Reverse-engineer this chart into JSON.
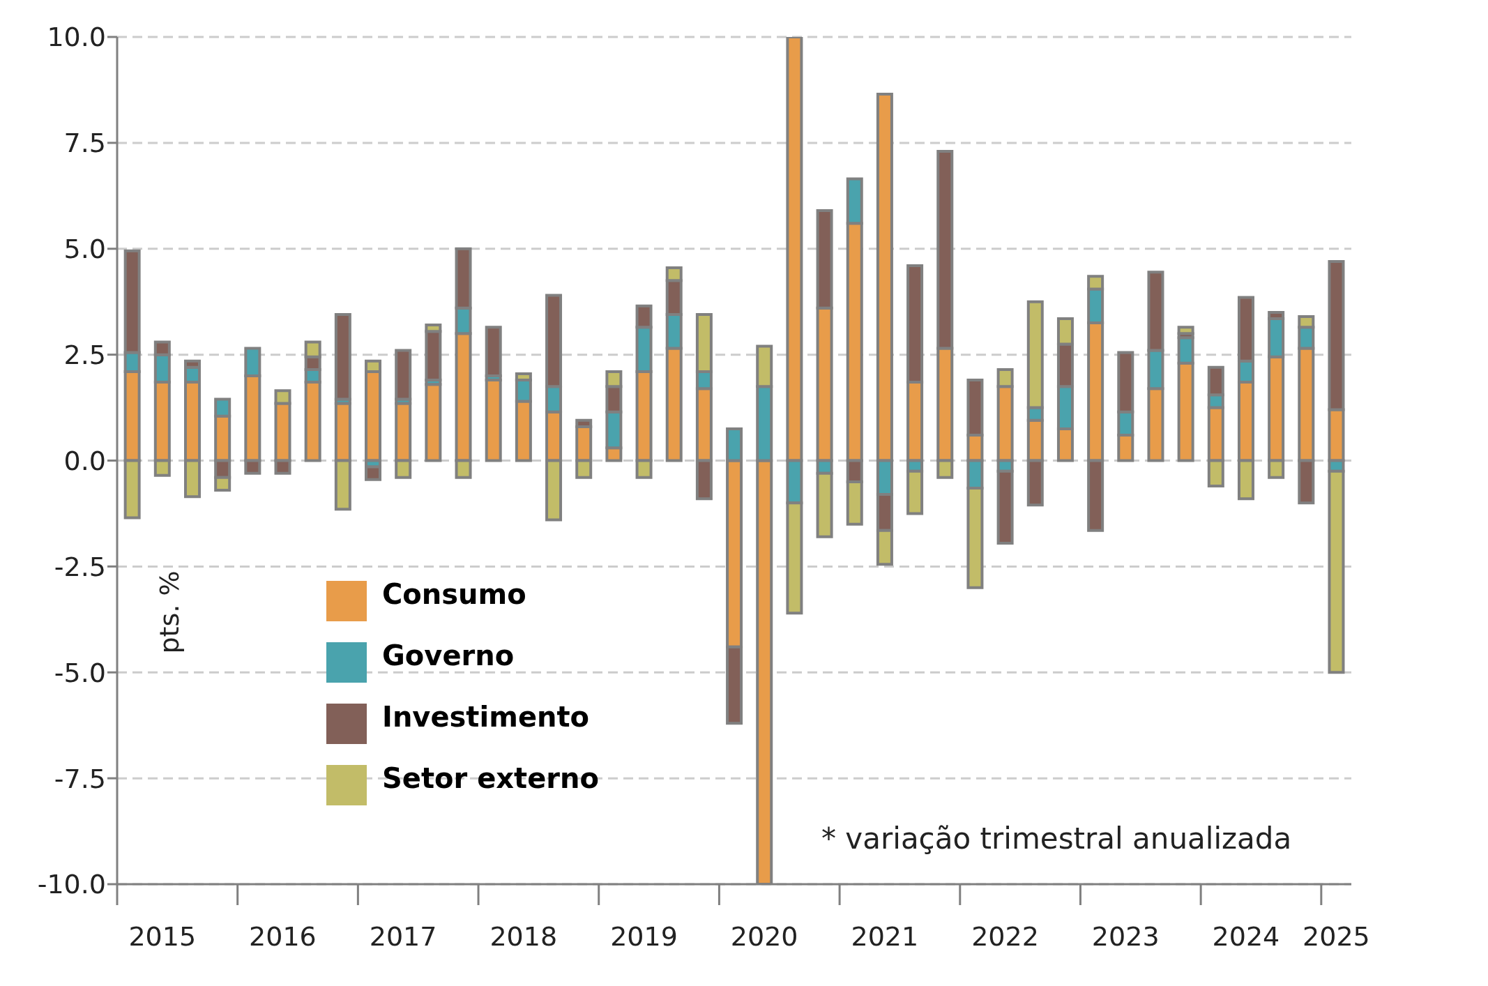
{
  "chart_data": {
    "type": "bar",
    "stacked": true,
    "ylabel": "pts. %",
    "annotations": [
      "* variação trimestral anualizada"
    ],
    "categories": [
      null,
      "2015",
      null,
      null,
      null,
      "2016",
      null,
      null,
      null,
      "2017",
      null,
      null,
      null,
      "2018",
      null,
      null,
      null,
      "2019",
      null,
      null,
      null,
      "2020",
      null,
      null,
      null,
      "2021",
      null,
      null,
      null,
      "2022",
      null,
      null,
      null,
      "2023",
      null,
      null,
      null,
      "2024",
      null,
      null,
      "2025"
    ],
    "series": [
      {
        "name": "Consumo",
        "color": "#e89c4a",
        "values": [
          2.1,
          1.85,
          1.85,
          1.05,
          2.0,
          1.35,
          1.85,
          1.35,
          2.1,
          1.35,
          1.8,
          3.0,
          1.9,
          1.4,
          1.15,
          0.8,
          0.3,
          2.1,
          2.65,
          1.7,
          -4.4,
          -10,
          10,
          3.6,
          5.6,
          8.65,
          1.85,
          2.65,
          0.6,
          1.75,
          0.95,
          0.75,
          3.25,
          0.6,
          1.7,
          2.3,
          1.25,
          1.85,
          2.45,
          2.65,
          1.2
        ]
      },
      {
        "name": "Governo",
        "color": "#4aa3ad",
        "values": [
          0.45,
          0.65,
          0.35,
          0.4,
          0.65,
          null,
          0.3,
          0.1,
          -0.15,
          0.1,
          0.1,
          0.6,
          0.1,
          0.5,
          0.6,
          null,
          0.85,
          1.05,
          0.8,
          0.4,
          0.75,
          1.75,
          -1.0,
          -0.3,
          1.05,
          -0.8,
          -0.25,
          null,
          -0.65,
          -0.25,
          0.3,
          1.0,
          0.8,
          0.55,
          0.9,
          0.6,
          0.3,
          0.5,
          0.9,
          0.5,
          -0.25
        ]
      },
      {
        "name": "Investimento",
        "color": "#826058",
        "values": [
          2.4,
          0.3,
          0.15,
          -0.4,
          -0.3,
          -0.3,
          0.3,
          2.0,
          -0.3,
          1.15,
          1.15,
          1.4,
          1.15,
          null,
          2.15,
          0.15,
          0.6,
          0.5,
          0.8,
          -0.9,
          -1.8,
          null,
          null,
          2.3,
          -0.5,
          -0.85,
          2.75,
          4.65,
          1.3,
          -1.7,
          -1.05,
          1.0,
          -1.65,
          1.4,
          1.85,
          0.1,
          0.65,
          1.5,
          0.15,
          -1.0,
          3.5
        ]
      },
      {
        "name": "Setor externo",
        "color": "#c2bc68",
        "values": [
          -1.35,
          -0.35,
          -0.85,
          -0.3,
          null,
          0.3,
          0.35,
          -1.15,
          0.25,
          -0.4,
          0.15,
          -0.4,
          null,
          0.15,
          -1.4,
          -0.4,
          0.35,
          -0.4,
          0.3,
          1.35,
          null,
          0.95,
          -2.6,
          -1.5,
          -1.0,
          -0.8,
          -1.0,
          -0.4,
          -2.35,
          0.4,
          2.5,
          0.6,
          0.3,
          null,
          null,
          0.15,
          -0.6,
          -0.9,
          -0.4,
          0.25,
          -4.75
        ]
      }
    ],
    "ylim": [
      -10,
      10
    ],
    "yticks": [
      {
        "value": -10,
        "label": "-10.0"
      },
      {
        "value": -7.5,
        "label": "-7.5"
      },
      {
        "value": -5,
        "label": "-5.0"
      },
      {
        "value": -2.5,
        "label": "-2.5"
      },
      {
        "value": 0,
        "label": "0.0"
      },
      {
        "value": 2.5,
        "label": "2.5"
      },
      {
        "value": 5,
        "label": "5.0"
      },
      {
        "value": 7.5,
        "label": "7.5"
      },
      {
        "value": 10,
        "label": "10.0"
      }
    ],
    "grid": "y",
    "legend": "bottom left"
  }
}
